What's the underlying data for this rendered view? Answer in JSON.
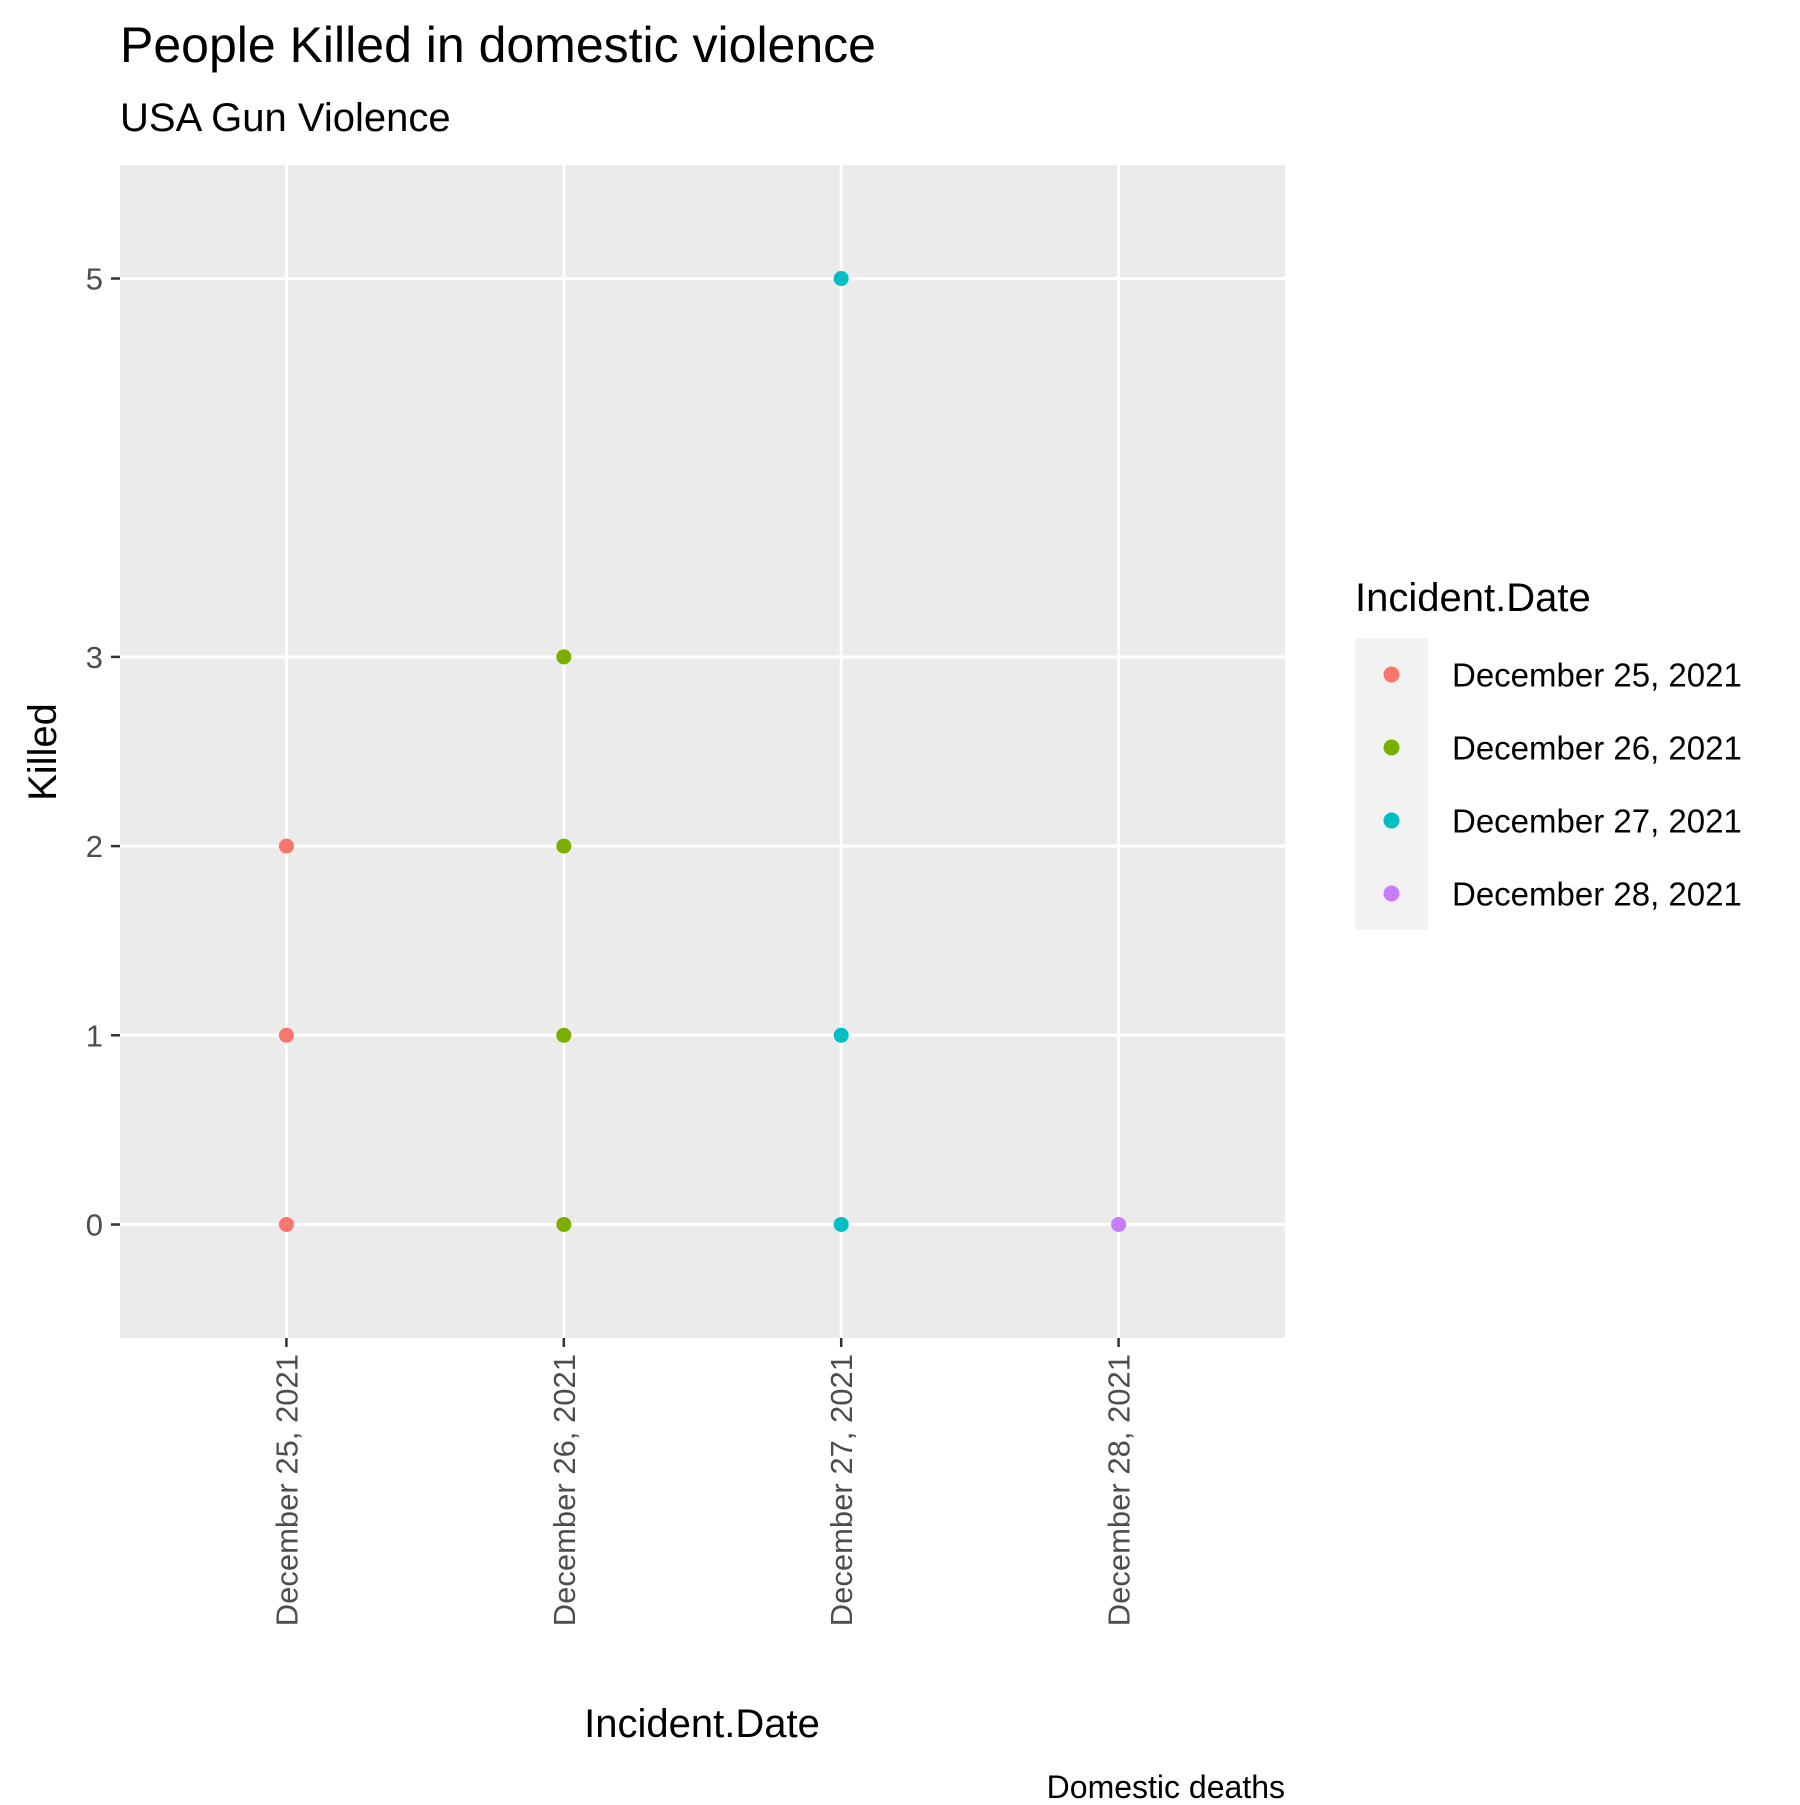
{
  "chart_data": {
    "type": "scatter",
    "title": "People Killed in domestic violence",
    "subtitle": "USA Gun Violence",
    "xlabel": "Incident.Date",
    "ylabel": "Killed",
    "caption": "Domestic deaths",
    "categories": [
      "December 25, 2021",
      "December 26, 2021",
      "December 27, 2021",
      "December 28, 2021"
    ],
    "yticks": [
      0,
      1,
      2,
      3,
      5
    ],
    "ylim": [
      -0.6,
      5.6
    ],
    "grid": true,
    "legend": {
      "title": "Incident.Date",
      "position": "right"
    },
    "series": [
      {
        "name": "December 25, 2021",
        "color": "#F8766D",
        "x": [
          "December 25, 2021",
          "December 25, 2021",
          "December 25, 2021"
        ],
        "values": [
          2,
          1,
          0
        ]
      },
      {
        "name": "December 26, 2021",
        "color": "#7CAE00",
        "x": [
          "December 26, 2021",
          "December 26, 2021",
          "December 26, 2021",
          "December 26, 2021"
        ],
        "values": [
          3,
          2,
          1,
          0
        ]
      },
      {
        "name": "December 27, 2021",
        "color": "#00BFC4",
        "x": [
          "December 27, 2021",
          "December 27, 2021",
          "December 27, 2021"
        ],
        "values": [
          5,
          1,
          0
        ]
      },
      {
        "name": "December 28, 2021",
        "color": "#C77CFF",
        "x": [
          "December 28, 2021"
        ],
        "values": [
          0
        ]
      }
    ]
  }
}
